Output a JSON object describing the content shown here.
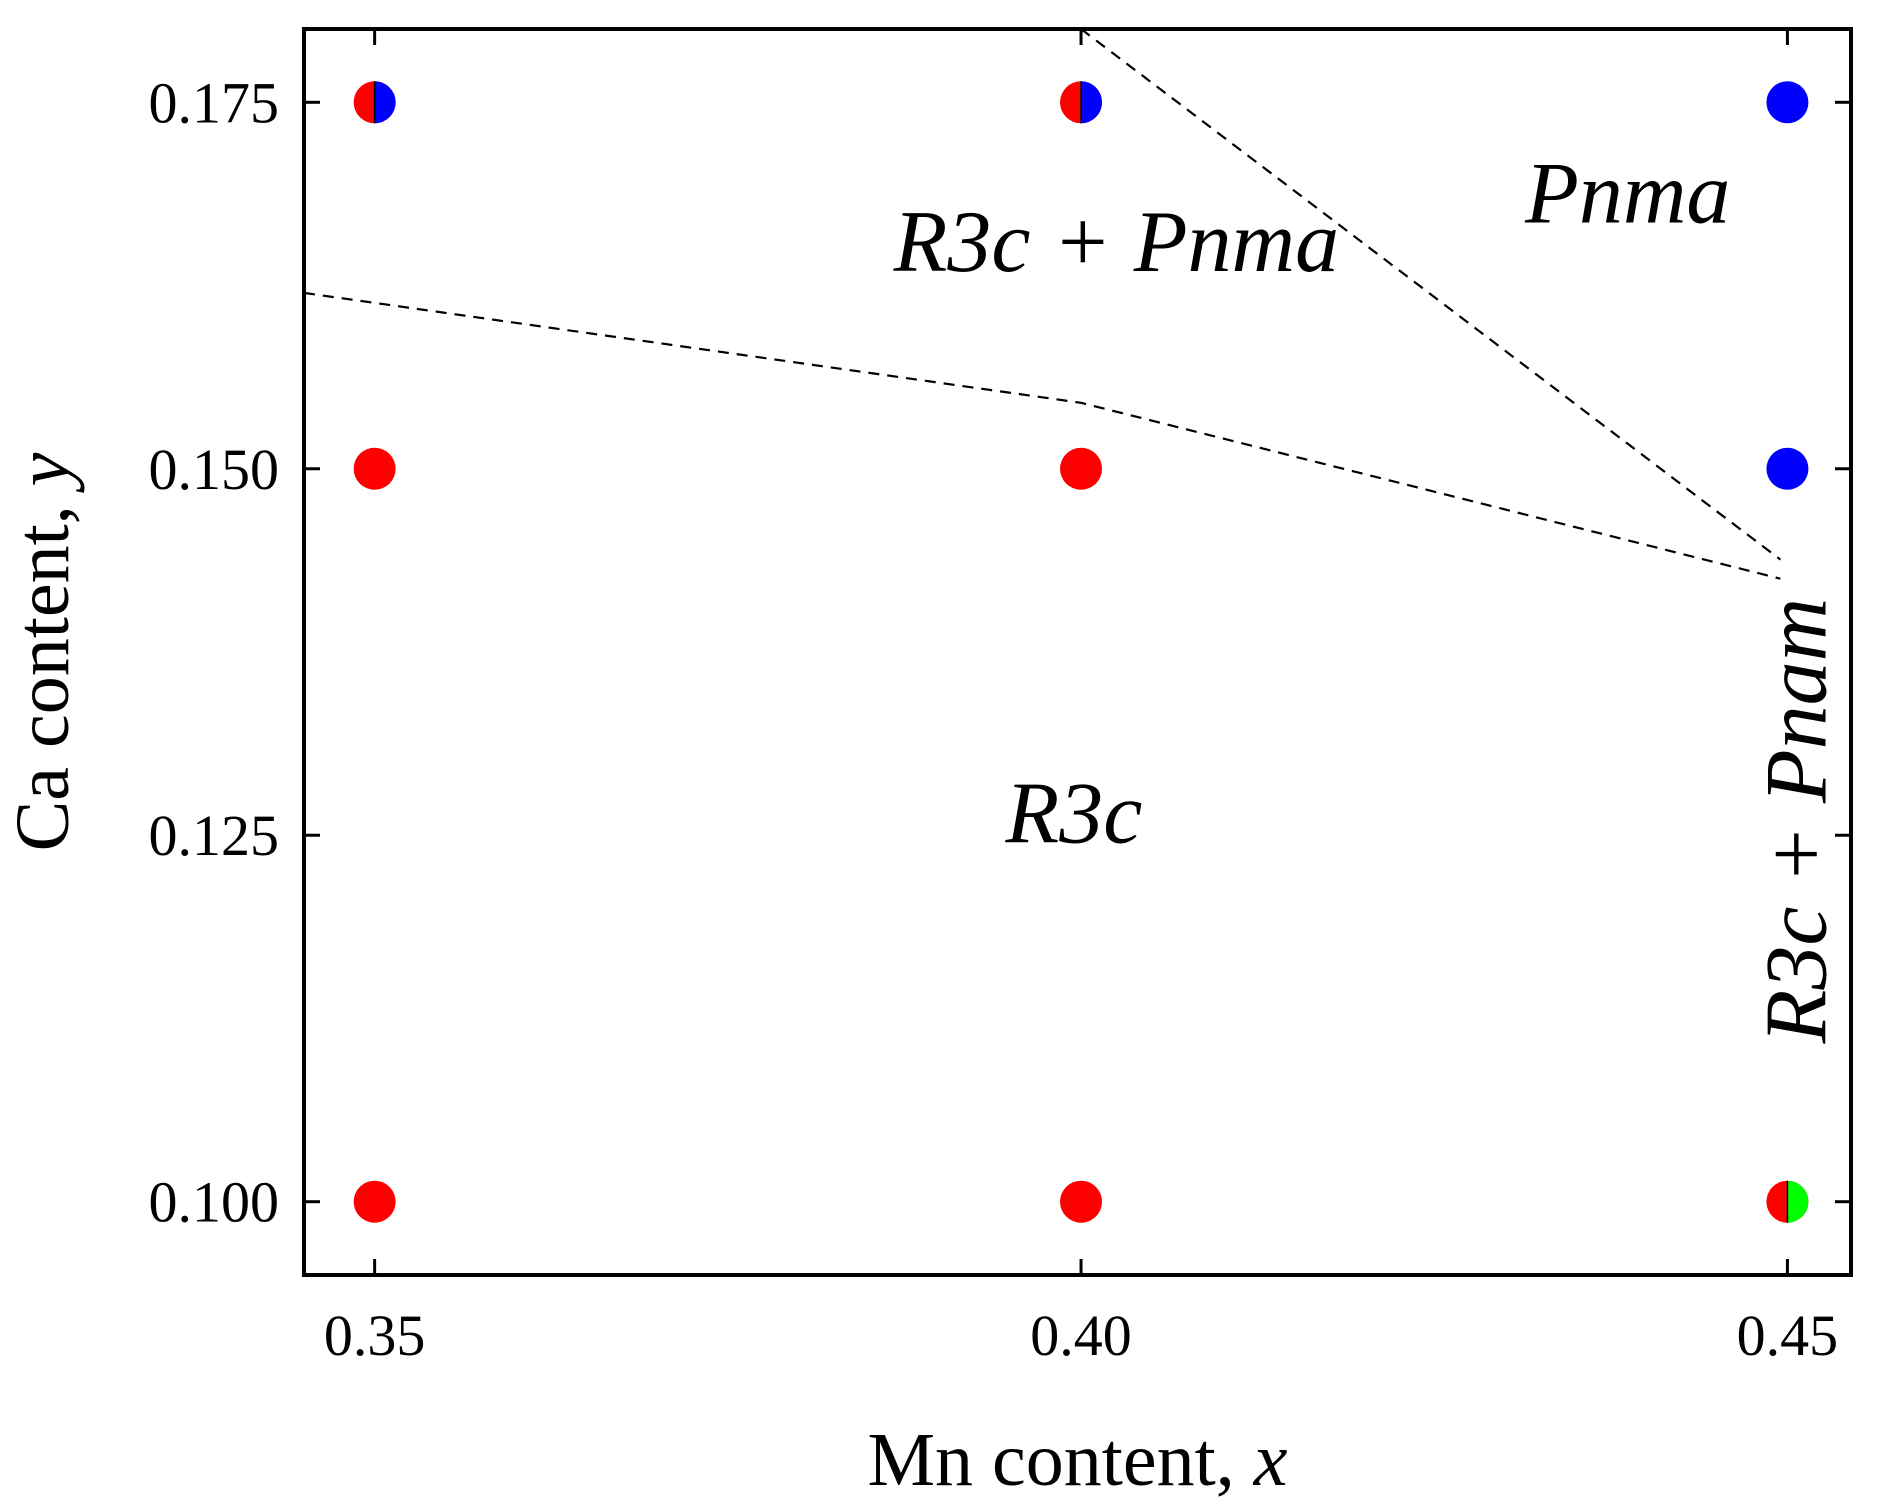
{
  "chart_data": {
    "type": "scatter",
    "xlabel": "Mn content, ",
    "xlabel_var": "x",
    "ylabel": "Ca content, ",
    "ylabel_var": "y",
    "xlim": [
      0.345,
      0.4545
    ],
    "ylim": [
      0.095,
      0.18
    ],
    "x_ticks": [
      {
        "value": 0.35,
        "label": "0.35"
      },
      {
        "value": 0.4,
        "label": "0.40"
      },
      {
        "value": 0.45,
        "label": "0.45"
      }
    ],
    "y_ticks": [
      {
        "value": 0.1,
        "label": "0.100"
      },
      {
        "value": 0.125,
        "label": "0.125"
      },
      {
        "value": 0.15,
        "label": "0.150"
      },
      {
        "value": 0.175,
        "label": "0.175"
      }
    ],
    "colors": {
      "R3c": "#ff0000",
      "Pnma": "#0000ff",
      "Pnam": "#00ff00"
    },
    "points": [
      {
        "x": 0.35,
        "y": 0.1,
        "phases": [
          "R3c"
        ]
      },
      {
        "x": 0.4,
        "y": 0.1,
        "phases": [
          "R3c"
        ]
      },
      {
        "x": 0.45,
        "y": 0.1,
        "phases": [
          "R3c",
          "Pnam"
        ]
      },
      {
        "x": 0.35,
        "y": 0.15,
        "phases": [
          "R3c"
        ]
      },
      {
        "x": 0.4,
        "y": 0.15,
        "phases": [
          "R3c"
        ]
      },
      {
        "x": 0.45,
        "y": 0.15,
        "phases": [
          "Pnma"
        ]
      },
      {
        "x": 0.35,
        "y": 0.175,
        "phases": [
          "R3c",
          "Pnma"
        ]
      },
      {
        "x": 0.4,
        "y": 0.175,
        "phases": [
          "R3c",
          "Pnma"
        ]
      },
      {
        "x": 0.45,
        "y": 0.175,
        "phases": [
          "Pnma"
        ]
      }
    ],
    "boundaries": [
      {
        "name": "lower",
        "points": [
          [
            0.345,
            0.162
          ],
          [
            0.4,
            0.1545
          ],
          [
            0.4495,
            0.1425
          ]
        ]
      },
      {
        "name": "upper",
        "points": [
          [
            0.4,
            0.18
          ],
          [
            0.4495,
            0.1438
          ]
        ]
      }
    ],
    "annotations": [
      {
        "id": "r3c-pnma",
        "text": "R3c + Pnma",
        "x": 0.4025,
        "y": 0.1635,
        "rotate": 0
      },
      {
        "id": "pnma",
        "text": "Pnma",
        "x": 0.4387,
        "y": 0.1668,
        "rotate": 0
      },
      {
        "id": "r3c",
        "text": "R3c",
        "x": 0.3995,
        "y": 0.1245,
        "rotate": 0
      },
      {
        "id": "r3c-pnam",
        "text": "R3c + Pnam",
        "x": 0.4527,
        "y": 0.126,
        "rotate": -90
      }
    ],
    "grid": false,
    "legend": "none"
  }
}
